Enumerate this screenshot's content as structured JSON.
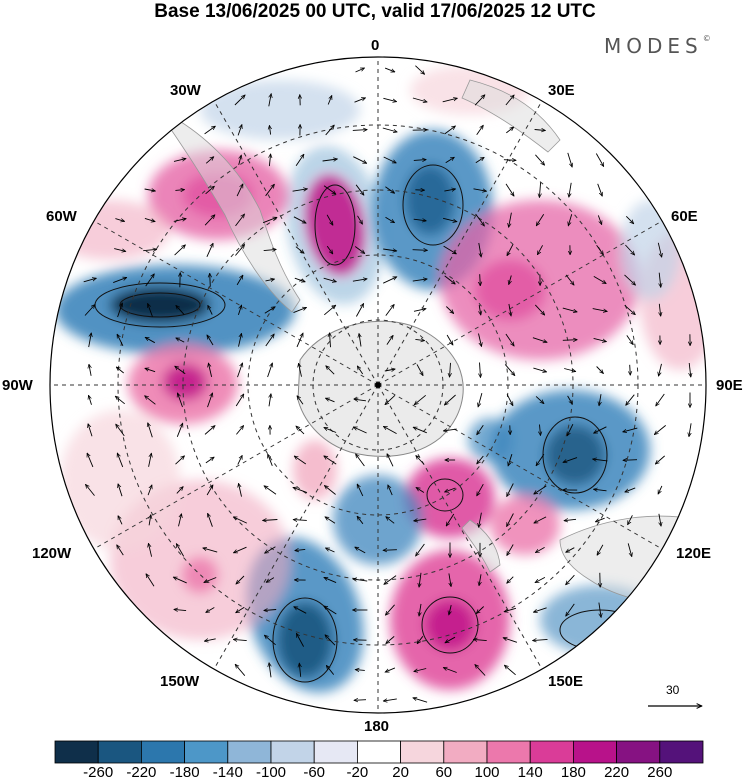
{
  "title": "Base 13/06/2025 00 UTC, valid 17/06/2025 12 UTC",
  "brand": "MODES",
  "brand_mark": "©",
  "longitude_labels": {
    "0": "0",
    "30E": "30E",
    "60E": "60E",
    "90E": "90E",
    "120E": "120E",
    "150E": "150E",
    "180": "180",
    "150W": "150W",
    "120W": "120W",
    "90W": "90W",
    "60W": "60W",
    "30W": "30W"
  },
  "reference_vector": {
    "label": "30"
  },
  "colorbar": {
    "labels": [
      "-260",
      "-220",
      "-180",
      "-140",
      "-100",
      "-60",
      "-20",
      "20",
      "60",
      "100",
      "140",
      "180",
      "220",
      "260"
    ],
    "colors": [
      "#0f2f4a",
      "#1a5680",
      "#2c77ad",
      "#4d97c8",
      "#8fb6d8",
      "#c2d4e8",
      "#e6e8f4",
      "#ffffff",
      "#f6d6dd",
      "#f2acc2",
      "#ec78ac",
      "#da3c98",
      "#b8128a",
      "#861282",
      "#54127a"
    ]
  },
  "map_style": {
    "land_fill": "#e8e8e8",
    "coast_color": "#999999",
    "pos_anomaly": "#e667a8",
    "neg_anomaly": "#3d86bd"
  }
}
